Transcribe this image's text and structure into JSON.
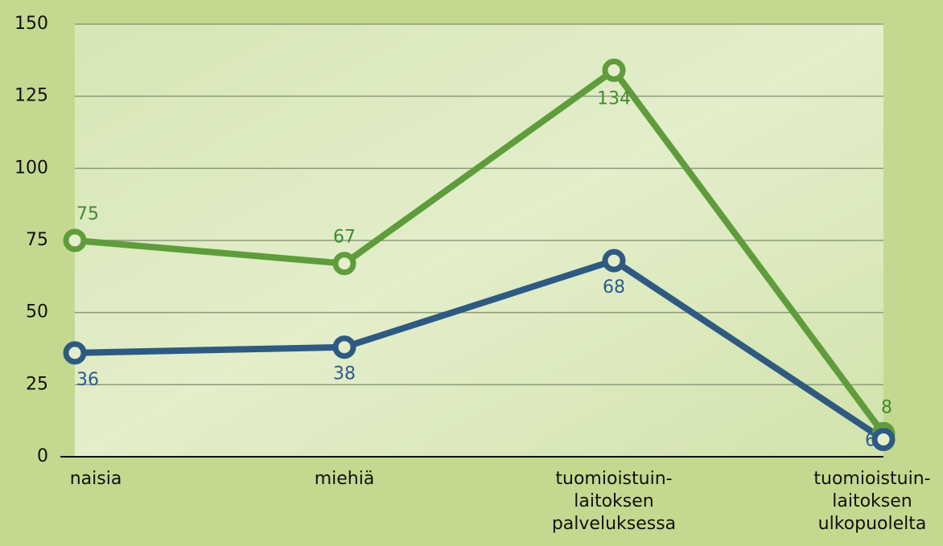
{
  "chart_data": {
    "type": "line",
    "categories": [
      "naisia",
      "miehiä",
      "tuomioistuin-\nlaitoksen\npalveluksessa",
      "tuomioistuin-\nlaitoksen\nulkopuolelta"
    ],
    "series": [
      {
        "color": "#5f9c3b",
        "label_color": "#3f8c2c",
        "values": [
          75,
          67,
          134,
          8
        ]
      },
      {
        "color": "#2e5a82",
        "label_color": "#2b5a8e",
        "values": [
          36,
          38,
          68,
          6
        ]
      }
    ],
    "ylim": [
      0,
      150
    ],
    "yticks": [
      0,
      25,
      50,
      75,
      100,
      125,
      150
    ],
    "grid": true
  }
}
